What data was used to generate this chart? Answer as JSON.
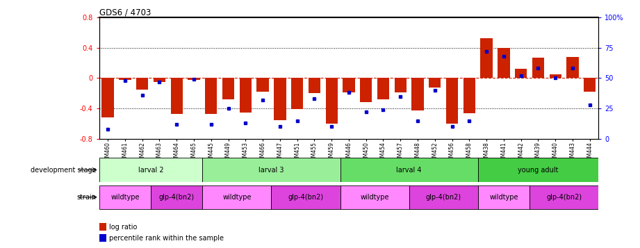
{
  "title": "GDS6 / 4703",
  "samples": [
    "GSM460",
    "GSM461",
    "GSM462",
    "GSM463",
    "GSM464",
    "GSM465",
    "GSM445",
    "GSM449",
    "GSM453",
    "GSM466",
    "GSM447",
    "GSM451",
    "GSM455",
    "GSM459",
    "GSM446",
    "GSM450",
    "GSM454",
    "GSM457",
    "GSM448",
    "GSM452",
    "GSM456",
    "GSM458",
    "GSM438",
    "GSM441",
    "GSM442",
    "GSM439",
    "GSM440",
    "GSM443",
    "GSM444"
  ],
  "log_ratio": [
    -0.52,
    -0.02,
    -0.15,
    -0.05,
    -0.47,
    -0.02,
    -0.47,
    -0.28,
    -0.45,
    -0.18,
    -0.55,
    -0.41,
    -0.2,
    -0.6,
    -0.19,
    -0.32,
    -0.28,
    -0.19,
    -0.43,
    -0.12,
    -0.6,
    -0.46,
    0.53,
    0.4,
    0.12,
    0.27,
    0.05,
    0.28,
    -0.18
  ],
  "percentile": [
    8,
    48,
    36,
    47,
    12,
    49,
    12,
    25,
    13,
    32,
    10,
    15,
    33,
    10,
    38,
    22,
    24,
    35,
    15,
    40,
    10,
    15,
    72,
    68,
    52,
    58,
    50,
    58,
    28
  ],
  "dev_stage_groups": [
    {
      "label": "larval 2",
      "start": 0,
      "end": 5,
      "color": "#ccffcc"
    },
    {
      "label": "larval 3",
      "start": 6,
      "end": 13,
      "color": "#99ee99"
    },
    {
      "label": "larval 4",
      "start": 14,
      "end": 21,
      "color": "#66dd66"
    },
    {
      "label": "young adult",
      "start": 22,
      "end": 28,
      "color": "#44cc44"
    }
  ],
  "strain_groups": [
    {
      "label": "wildtype",
      "start": 0,
      "end": 2,
      "color": "#ff88ff"
    },
    {
      "label": "glp-4(bn2)",
      "start": 3,
      "end": 5,
      "color": "#dd44dd"
    },
    {
      "label": "wildtype",
      "start": 6,
      "end": 9,
      "color": "#ff88ff"
    },
    {
      "label": "glp-4(bn2)",
      "start": 10,
      "end": 13,
      "color": "#dd44dd"
    },
    {
      "label": "wildtype",
      "start": 14,
      "end": 17,
      "color": "#ff88ff"
    },
    {
      "label": "glp-4(bn2)",
      "start": 18,
      "end": 21,
      "color": "#dd44dd"
    },
    {
      "label": "wildtype",
      "start": 22,
      "end": 24,
      "color": "#ff88ff"
    },
    {
      "label": "glp-4(bn2)",
      "start": 25,
      "end": 28,
      "color": "#dd44dd"
    }
  ],
  "ylim": [
    -0.8,
    0.8
  ],
  "y2lim": [
    0,
    100
  ],
  "bar_color": "#cc2200",
  "dot_color": "#0000cc",
  "zero_line_color": "#cc2200",
  "grid_color": "#000000",
  "bar_width": 0.7
}
